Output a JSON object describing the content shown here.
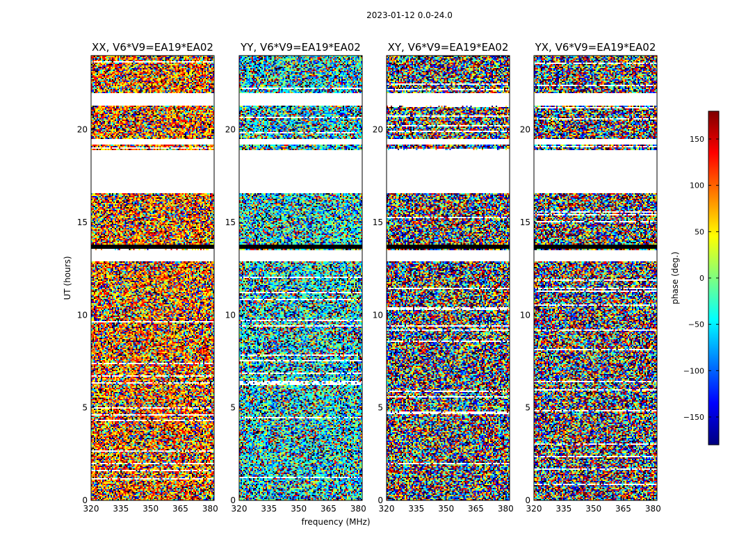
{
  "figure_title": "2023-01-12 0.0-24.0",
  "chart_data": {
    "type": "heatmap",
    "suptitle": "2023-01-12 0.0-24.0",
    "xlabel": "frequency (MHz)",
    "ylabel": "UT (hours)",
    "xlim": [
      320,
      382
    ],
    "ylim": [
      0,
      24
    ],
    "xticks": [
      320,
      335,
      350,
      365,
      380
    ],
    "yticks": [
      0,
      5,
      10,
      15,
      20
    ],
    "panels": [
      {
        "title": "XX, V6*V9=EA19*EA02"
      },
      {
        "title": "YY, V6*V9=EA19*EA02"
      },
      {
        "title": "XY, V6*V9=EA19*EA02"
      },
      {
        "title": "YX, V6*V9=EA19*EA02"
      }
    ],
    "blank_ut_ranges": [
      [
        21.3,
        22.0
      ],
      [
        19.2,
        19.5
      ],
      [
        16.6,
        18.9
      ],
      [
        12.9,
        13.5
      ]
    ],
    "black_ut_bands": [
      [
        13.6,
        13.8
      ]
    ],
    "colorbar": {
      "label": "phase (deg.)",
      "range": [
        -180,
        180
      ],
      "ticks": [
        150,
        100,
        50,
        0,
        -50,
        -100,
        -150
      ],
      "tick_labels": [
        "150",
        "100",
        "50",
        "0",
        "−50",
        "−100",
        "−150"
      ],
      "colormap": "jet",
      "colors": [
        "#00007f",
        "#0000ff",
        "#007fff",
        "#00ffff",
        "#7fff7f",
        "#ffff00",
        "#ff7f00",
        "#ff0000",
        "#7f0000"
      ]
    }
  }
}
